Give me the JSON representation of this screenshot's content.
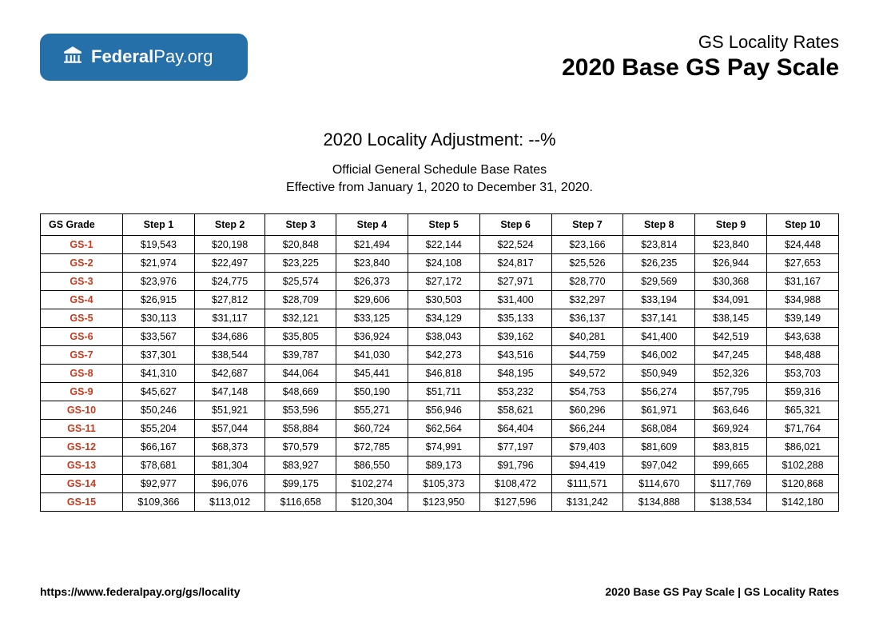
{
  "logo": {
    "prefix": "Federal",
    "suffix": "Pay.org"
  },
  "header": {
    "subtitle": "GS Locality Rates",
    "title": "2020 Base GS Pay Scale"
  },
  "mid": {
    "adjustment": "2020 Locality Adjustment: --%",
    "desc1": "Official General Schedule Base Rates",
    "desc2": "Effective from January 1, 2020 to December 31, 2020."
  },
  "table": {
    "columns": [
      "GS Grade",
      "Step 1",
      "Step 2",
      "Step 3",
      "Step 4",
      "Step 5",
      "Step 6",
      "Step 7",
      "Step 8",
      "Step 9",
      "Step 10"
    ],
    "rows": [
      [
        "GS-1",
        "$19,543",
        "$20,198",
        "$20,848",
        "$21,494",
        "$22,144",
        "$22,524",
        "$23,166",
        "$23,814",
        "$23,840",
        "$24,448"
      ],
      [
        "GS-2",
        "$21,974",
        "$22,497",
        "$23,225",
        "$23,840",
        "$24,108",
        "$24,817",
        "$25,526",
        "$26,235",
        "$26,944",
        "$27,653"
      ],
      [
        "GS-3",
        "$23,976",
        "$24,775",
        "$25,574",
        "$26,373",
        "$27,172",
        "$27,971",
        "$28,770",
        "$29,569",
        "$30,368",
        "$31,167"
      ],
      [
        "GS-4",
        "$26,915",
        "$27,812",
        "$28,709",
        "$29,606",
        "$30,503",
        "$31,400",
        "$32,297",
        "$33,194",
        "$34,091",
        "$34,988"
      ],
      [
        "GS-5",
        "$30,113",
        "$31,117",
        "$32,121",
        "$33,125",
        "$34,129",
        "$35,133",
        "$36,137",
        "$37,141",
        "$38,145",
        "$39,149"
      ],
      [
        "GS-6",
        "$33,567",
        "$34,686",
        "$35,805",
        "$36,924",
        "$38,043",
        "$39,162",
        "$40,281",
        "$41,400",
        "$42,519",
        "$43,638"
      ],
      [
        "GS-7",
        "$37,301",
        "$38,544",
        "$39,787",
        "$41,030",
        "$42,273",
        "$43,516",
        "$44,759",
        "$46,002",
        "$47,245",
        "$48,488"
      ],
      [
        "GS-8",
        "$41,310",
        "$42,687",
        "$44,064",
        "$45,441",
        "$46,818",
        "$48,195",
        "$49,572",
        "$50,949",
        "$52,326",
        "$53,703"
      ],
      [
        "GS-9",
        "$45,627",
        "$47,148",
        "$48,669",
        "$50,190",
        "$51,711",
        "$53,232",
        "$54,753",
        "$56,274",
        "$57,795",
        "$59,316"
      ],
      [
        "GS-10",
        "$50,246",
        "$51,921",
        "$53,596",
        "$55,271",
        "$56,946",
        "$58,621",
        "$60,296",
        "$61,971",
        "$63,646",
        "$65,321"
      ],
      [
        "GS-11",
        "$55,204",
        "$57,044",
        "$58,884",
        "$60,724",
        "$62,564",
        "$64,404",
        "$66,244",
        "$68,084",
        "$69,924",
        "$71,764"
      ],
      [
        "GS-12",
        "$66,167",
        "$68,373",
        "$70,579",
        "$72,785",
        "$74,991",
        "$77,197",
        "$79,403",
        "$81,609",
        "$83,815",
        "$86,021"
      ],
      [
        "GS-13",
        "$78,681",
        "$81,304",
        "$83,927",
        "$86,550",
        "$89,173",
        "$91,796",
        "$94,419",
        "$97,042",
        "$99,665",
        "$102,288"
      ],
      [
        "GS-14",
        "$92,977",
        "$96,076",
        "$99,175",
        "$102,274",
        "$105,373",
        "$108,472",
        "$111,571",
        "$114,670",
        "$117,769",
        "$120,868"
      ],
      [
        "GS-15",
        "$109,366",
        "$113,012",
        "$116,658",
        "$120,304",
        "$123,950",
        "$127,596",
        "$131,242",
        "$134,888",
        "$138,534",
        "$142,180"
      ]
    ],
    "grade_color": "#c73a1d",
    "border_color": "#000000"
  },
  "footer": {
    "left": "https://www.federalpay.org/gs/locality",
    "right": "2020 Base GS Pay Scale | GS Locality Rates"
  },
  "colors": {
    "badge_bg": "#2670a9",
    "badge_text": "#ffffff",
    "page_bg": "#ffffff"
  }
}
